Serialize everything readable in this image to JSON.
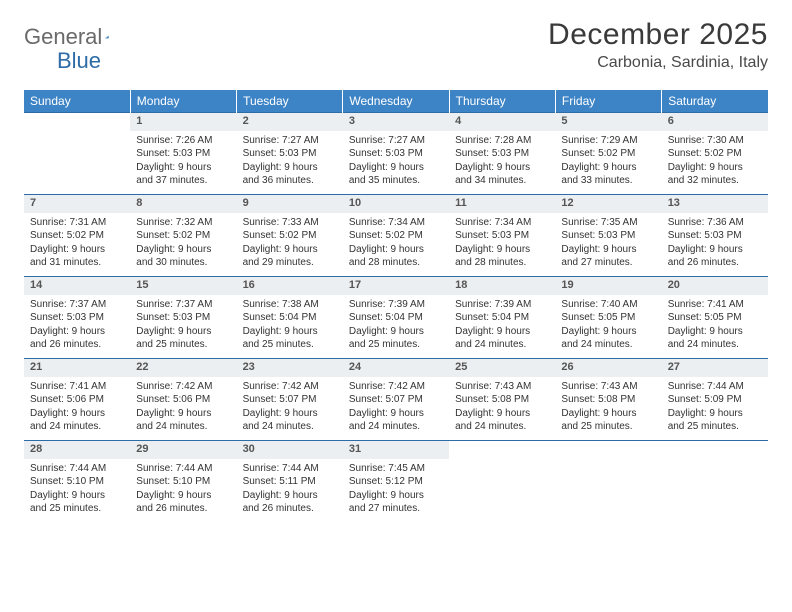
{
  "logo": {
    "part1": "General",
    "part2": "Blue"
  },
  "title": "December 2025",
  "location": "Carbonia, Sardinia, Italy",
  "colors": {
    "header_bg": "#3d84c6",
    "header_text": "#ffffff",
    "daynum_bg": "#eceff1",
    "border": "#2e6ca8",
    "logo_gray": "#6a6a6a",
    "logo_blue": "#2e6ca8"
  },
  "weekdays": [
    "Sunday",
    "Monday",
    "Tuesday",
    "Wednesday",
    "Thursday",
    "Friday",
    "Saturday"
  ],
  "first_weekday_index": 1,
  "days": [
    {
      "n": 1,
      "sunrise": "7:26 AM",
      "sunset": "5:03 PM",
      "dl": "9 hours and 37 minutes."
    },
    {
      "n": 2,
      "sunrise": "7:27 AM",
      "sunset": "5:03 PM",
      "dl": "9 hours and 36 minutes."
    },
    {
      "n": 3,
      "sunrise": "7:27 AM",
      "sunset": "5:03 PM",
      "dl": "9 hours and 35 minutes."
    },
    {
      "n": 4,
      "sunrise": "7:28 AM",
      "sunset": "5:03 PM",
      "dl": "9 hours and 34 minutes."
    },
    {
      "n": 5,
      "sunrise": "7:29 AM",
      "sunset": "5:02 PM",
      "dl": "9 hours and 33 minutes."
    },
    {
      "n": 6,
      "sunrise": "7:30 AM",
      "sunset": "5:02 PM",
      "dl": "9 hours and 32 minutes."
    },
    {
      "n": 7,
      "sunrise": "7:31 AM",
      "sunset": "5:02 PM",
      "dl": "9 hours and 31 minutes."
    },
    {
      "n": 8,
      "sunrise": "7:32 AM",
      "sunset": "5:02 PM",
      "dl": "9 hours and 30 minutes."
    },
    {
      "n": 9,
      "sunrise": "7:33 AM",
      "sunset": "5:02 PM",
      "dl": "9 hours and 29 minutes."
    },
    {
      "n": 10,
      "sunrise": "7:34 AM",
      "sunset": "5:02 PM",
      "dl": "9 hours and 28 minutes."
    },
    {
      "n": 11,
      "sunrise": "7:34 AM",
      "sunset": "5:03 PM",
      "dl": "9 hours and 28 minutes."
    },
    {
      "n": 12,
      "sunrise": "7:35 AM",
      "sunset": "5:03 PM",
      "dl": "9 hours and 27 minutes."
    },
    {
      "n": 13,
      "sunrise": "7:36 AM",
      "sunset": "5:03 PM",
      "dl": "9 hours and 26 minutes."
    },
    {
      "n": 14,
      "sunrise": "7:37 AM",
      "sunset": "5:03 PM",
      "dl": "9 hours and 26 minutes."
    },
    {
      "n": 15,
      "sunrise": "7:37 AM",
      "sunset": "5:03 PM",
      "dl": "9 hours and 25 minutes."
    },
    {
      "n": 16,
      "sunrise": "7:38 AM",
      "sunset": "5:04 PM",
      "dl": "9 hours and 25 minutes."
    },
    {
      "n": 17,
      "sunrise": "7:39 AM",
      "sunset": "5:04 PM",
      "dl": "9 hours and 25 minutes."
    },
    {
      "n": 18,
      "sunrise": "7:39 AM",
      "sunset": "5:04 PM",
      "dl": "9 hours and 24 minutes."
    },
    {
      "n": 19,
      "sunrise": "7:40 AM",
      "sunset": "5:05 PM",
      "dl": "9 hours and 24 minutes."
    },
    {
      "n": 20,
      "sunrise": "7:41 AM",
      "sunset": "5:05 PM",
      "dl": "9 hours and 24 minutes."
    },
    {
      "n": 21,
      "sunrise": "7:41 AM",
      "sunset": "5:06 PM",
      "dl": "9 hours and 24 minutes."
    },
    {
      "n": 22,
      "sunrise": "7:42 AM",
      "sunset": "5:06 PM",
      "dl": "9 hours and 24 minutes."
    },
    {
      "n": 23,
      "sunrise": "7:42 AM",
      "sunset": "5:07 PM",
      "dl": "9 hours and 24 minutes."
    },
    {
      "n": 24,
      "sunrise": "7:42 AM",
      "sunset": "5:07 PM",
      "dl": "9 hours and 24 minutes."
    },
    {
      "n": 25,
      "sunrise": "7:43 AM",
      "sunset": "5:08 PM",
      "dl": "9 hours and 24 minutes."
    },
    {
      "n": 26,
      "sunrise": "7:43 AM",
      "sunset": "5:08 PM",
      "dl": "9 hours and 25 minutes."
    },
    {
      "n": 27,
      "sunrise": "7:44 AM",
      "sunset": "5:09 PM",
      "dl": "9 hours and 25 minutes."
    },
    {
      "n": 28,
      "sunrise": "7:44 AM",
      "sunset": "5:10 PM",
      "dl": "9 hours and 25 minutes."
    },
    {
      "n": 29,
      "sunrise": "7:44 AM",
      "sunset": "5:10 PM",
      "dl": "9 hours and 26 minutes."
    },
    {
      "n": 30,
      "sunrise": "7:44 AM",
      "sunset": "5:11 PM",
      "dl": "9 hours and 26 minutes."
    },
    {
      "n": 31,
      "sunrise": "7:45 AM",
      "sunset": "5:12 PM",
      "dl": "9 hours and 27 minutes."
    }
  ],
  "labels": {
    "sunrise": "Sunrise:",
    "sunset": "Sunset:",
    "daylight": "Daylight:"
  }
}
